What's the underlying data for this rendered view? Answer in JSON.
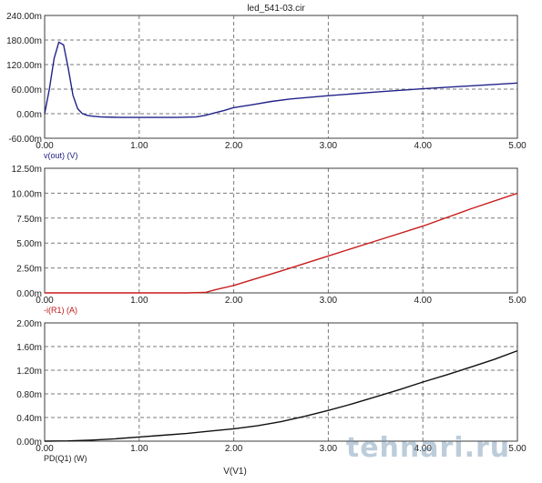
{
  "title": "led_541-03.cir",
  "xlabel": "V(V1)",
  "watermark": "tehnari.ru",
  "colors": {
    "grid": "#7a7a7a",
    "frame": "#3c3c3c",
    "text": "#202020"
  },
  "chart_data": [
    {
      "type": "line",
      "ylabel": "v(out) (V)",
      "label_color": "#1b1b80",
      "color": "#22228a",
      "xlim": [
        0,
        5
      ],
      "ylim": [
        -0.06,
        0.24
      ],
      "xticks": [
        "0.00",
        "1.00",
        "2.00",
        "3.00",
        "4.00",
        "5.00"
      ],
      "yticks": [
        "240.00m",
        "180.00m",
        "120.00m",
        "60.00m",
        "0.00m",
        "-60.00m"
      ],
      "series": [
        {
          "x": [
            0,
            0.05,
            0.1,
            0.15,
            0.2,
            0.25,
            0.3,
            0.35,
            0.4,
            0.45,
            0.5,
            0.6,
            0.8,
            1.0,
            1.2,
            1.4,
            1.6,
            1.7,
            1.8,
            1.9,
            2.0,
            2.2,
            2.4,
            2.6,
            3.0,
            3.5,
            4.0,
            4.5,
            5.0
          ],
          "y": [
            0.0,
            0.06,
            0.135,
            0.175,
            0.168,
            0.11,
            0.045,
            0.012,
            0.0,
            -0.004,
            -0.006,
            -0.008,
            -0.009,
            -0.009,
            -0.009,
            -0.009,
            -0.008,
            -0.004,
            0.002,
            0.008,
            0.015,
            0.022,
            0.03,
            0.036,
            0.044,
            0.053,
            0.061,
            0.068,
            0.075
          ]
        }
      ]
    },
    {
      "type": "line",
      "ylabel": "-i(R1) (A)",
      "label_color": "#c01818",
      "color": "#c81c1c",
      "xlim": [
        0,
        5
      ],
      "ylim": [
        0,
        0.0125
      ],
      "xticks": [
        "0.00",
        "1.00",
        "2.00",
        "3.00",
        "4.00",
        "5.00"
      ],
      "yticks": [
        "12.50m",
        "10.00m",
        "7.50m",
        "5.00m",
        "2.50m",
        "0.00m"
      ],
      "series": [
        {
          "x": [
            0,
            0.5,
            1.0,
            1.5,
            1.7,
            1.8,
            2.0,
            2.5,
            3.0,
            3.5,
            4.0,
            4.5,
            5.0
          ],
          "y": [
            0,
            0,
            0,
            0,
            5e-05,
            0.0003,
            0.00075,
            0.0022,
            0.0037,
            0.0052,
            0.0067,
            0.0084,
            0.01
          ]
        }
      ]
    },
    {
      "type": "line",
      "ylabel": "PD(Q1) (W)",
      "label_color": "#202020",
      "color": "#101010",
      "xlim": [
        0,
        5
      ],
      "ylim": [
        0,
        0.002
      ],
      "xticks": [
        "0.00",
        "1.00",
        "2.00",
        "3.00",
        "4.00",
        "5.00"
      ],
      "yticks": [
        "2.00m",
        "1.60m",
        "1.20m",
        "0.80m",
        "0.40m",
        "0.00m"
      ],
      "series": [
        {
          "x": [
            0,
            0.25,
            0.5,
            0.75,
            1.0,
            1.25,
            1.5,
            1.75,
            2.0,
            2.25,
            2.5,
            2.75,
            3.0,
            3.25,
            3.5,
            3.75,
            4.0,
            4.25,
            4.5,
            4.75,
            5.0
          ],
          "y": [
            0,
            4e-06,
            1.8e-05,
            4e-05,
            7e-05,
            0.0001,
            0.00013,
            0.00017,
            0.00021,
            0.00026,
            0.00033,
            0.00042,
            0.00052,
            0.00063,
            0.00075,
            0.00087,
            0.001,
            0.00112,
            0.00125,
            0.00138,
            0.00153
          ]
        }
      ]
    }
  ]
}
